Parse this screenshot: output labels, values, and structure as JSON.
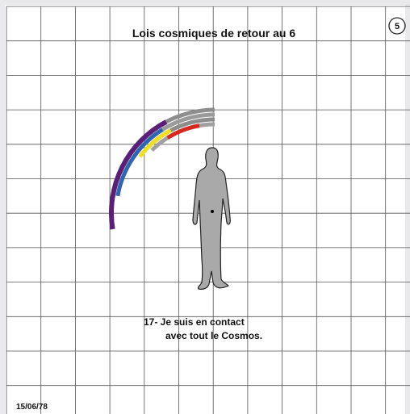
{
  "header": {
    "title": "Lois cosmiques de retour au 6",
    "page_number": "5"
  },
  "caption": {
    "line1": "17- Je suis en contact",
    "line2": "avec tout le Cosmos."
  },
  "footer": {
    "date": "15/06/78"
  }
}
